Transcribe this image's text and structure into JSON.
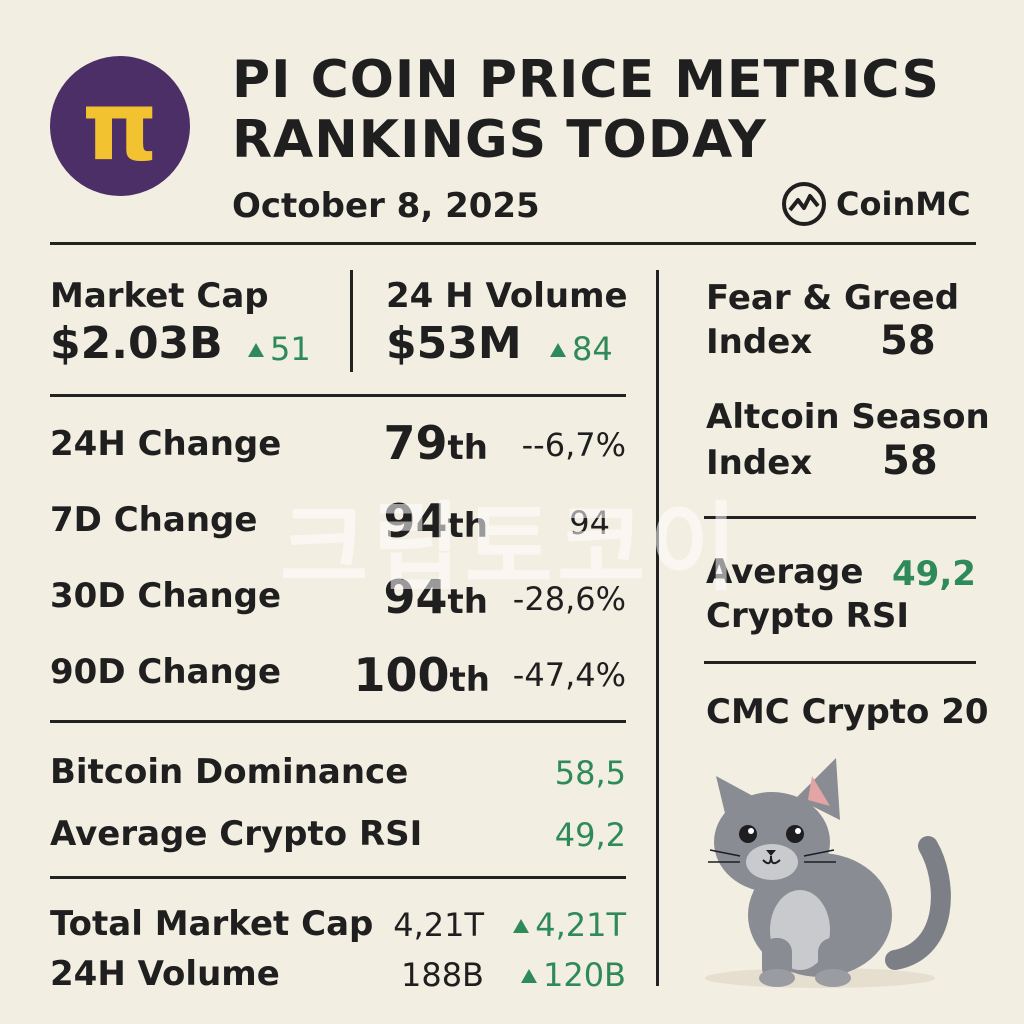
{
  "header": {
    "logo_glyph": "π",
    "title_line1": "PI COIN PRICE METRICS",
    "title_line2": "RANKINGS TODAY",
    "date": "October 8, 2025",
    "brand": "CoinMC"
  },
  "summary": {
    "market_cap_label": "Market Cap",
    "market_cap_value": "$2.03B",
    "market_cap_change": "51",
    "volume_label": "24 H Volume",
    "volume_value": "$53M",
    "volume_change": "84"
  },
  "rankings": [
    {
      "label": "24H Change",
      "rank": "79",
      "suffix": "th",
      "value": "--6,7%"
    },
    {
      "label": "7D Change",
      "rank": "94",
      "suffix": "th",
      "value": "94"
    },
    {
      "label": "30D Change",
      "rank": "94",
      "suffix": "th",
      "value": "-28,6%"
    },
    {
      "label": "90D Change",
      "rank": "100",
      "suffix": "th",
      "value": "-47,4%"
    }
  ],
  "dominance": {
    "btc_label": "Bitcoin Dominance",
    "btc_value": "58,5",
    "rsi_label": "Average Crypto RSI",
    "rsi_value": "49,2"
  },
  "totals": {
    "mcap_label": "Total Market Cap",
    "mcap_value": "4,21T",
    "mcap_change": "4,21T",
    "vol_label": "24H Volume",
    "vol_value": "188B",
    "vol_change": "120B"
  },
  "sidebar": {
    "fg_label_1": "Fear & Greed",
    "fg_label_2": "Index",
    "fg_value": "58",
    "alt_label_1": "Altcoin Season",
    "alt_label_2": "Index",
    "alt_value": "58",
    "rsi_label_1": "Average",
    "rsi_label_2": "Crypto RSI",
    "rsi_value": "49,2",
    "cmc_label": "CMC Crypto 20"
  },
  "watermark": "크립토코이",
  "colors": {
    "background": "#f3eee2",
    "accent_green": "#2f8a5a",
    "logo_bg": "#4b2f66",
    "logo_gold": "#f2c230"
  }
}
